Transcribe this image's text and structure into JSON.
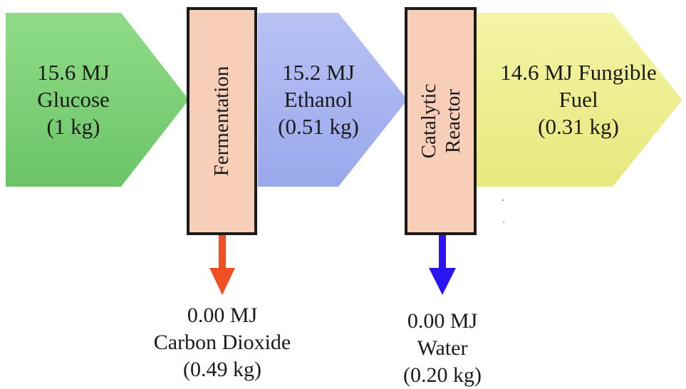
{
  "stages": {
    "glucose": {
      "lines": [
        "15.6 MJ",
        "Glucose",
        "(1 kg)"
      ],
      "color": "#7fd07a"
    },
    "ethanol": {
      "lines": [
        "15.2 MJ",
        "Ethanol",
        "(0.51 kg)"
      ],
      "color": "#a9b5f0"
    },
    "fuel": {
      "lines": [
        "14.6 MJ Fungible",
        "Fuel",
        "(0.31 kg)"
      ],
      "color": "#efef92"
    }
  },
  "processes": {
    "fermentation": {
      "lines": [
        "Fermentation"
      ],
      "fill": "#f7cfb8",
      "border": "#1a1a1a"
    },
    "catalytic_reactor": {
      "lines": [
        "Catalytic",
        "Reactor"
      ],
      "fill": "#f7cfb8",
      "border": "#1a1a1a"
    }
  },
  "byproducts": {
    "carbon_dioxide": {
      "lines": [
        "0.00 MJ",
        "Carbon Dioxide",
        "(0.49 kg)"
      ],
      "arrow_color": "#f04e23"
    },
    "water": {
      "lines": [
        "0.00 MJ",
        "Water",
        "(0.20 kg)"
      ],
      "arrow_color": "#2a14f0"
    }
  }
}
